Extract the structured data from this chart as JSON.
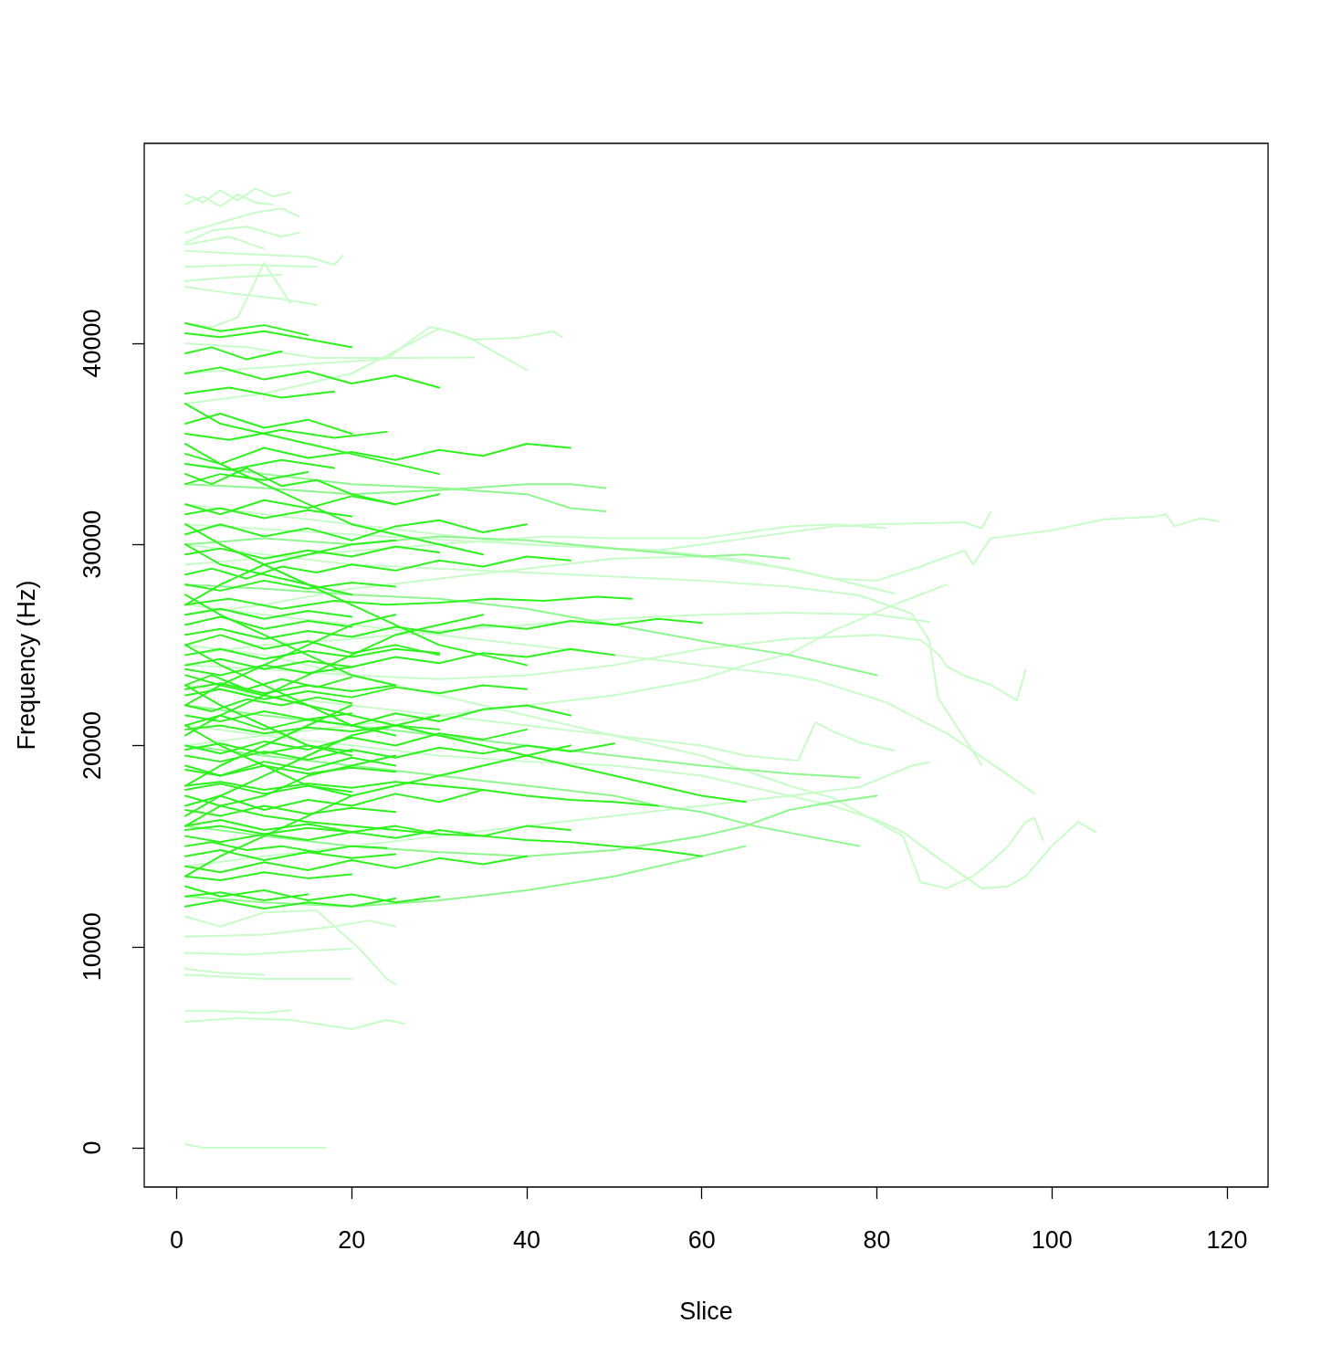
{
  "chart_data": {
    "type": "line",
    "xlabel": "Slice",
    "ylabel": "Frequency (Hz)",
    "xlim": [
      -3.7,
      124.7
    ],
    "xticks": [
      0,
      20,
      40,
      60,
      80,
      100,
      120
    ],
    "ylim": [
      -1950,
      49940
    ],
    "yticks": [
      0,
      10000,
      20000,
      30000,
      40000
    ],
    "series": [
      {
        "color": "#c8fcc8",
        "x": [
          1,
          3,
          5,
          7,
          9,
          11,
          13
        ],
        "values": [
          47400,
          47000,
          47600,
          47100,
          47700,
          47300,
          47500
        ]
      },
      {
        "color": "#c8fcc8",
        "x": [
          1,
          3,
          5,
          7,
          9,
          11
        ],
        "values": [
          46900,
          47300,
          46800,
          47400,
          47000,
          46900
        ]
      },
      {
        "color": "#c8fcc8",
        "x": [
          1,
          5,
          9,
          12,
          14
        ],
        "values": [
          45500,
          46000,
          46500,
          46700,
          46300
        ]
      },
      {
        "color": "#c8fcc8",
        "x": [
          1,
          4,
          8,
          12,
          14
        ],
        "values": [
          45000,
          45600,
          45800,
          45300,
          45500
        ]
      },
      {
        "color": "#c8fcc8",
        "x": [
          1,
          6,
          10
        ],
        "values": [
          44900,
          45300,
          44700
        ]
      },
      {
        "color": "#c8fcc8",
        "x": [
          1,
          5,
          10,
          15,
          18,
          19
        ],
        "values": [
          44600,
          44500,
          44400,
          44300,
          43900,
          44360
        ]
      },
      {
        "color": "#c8fcc8",
        "x": [
          1,
          8,
          16
        ],
        "values": [
          43800,
          43900,
          43800
        ]
      },
      {
        "color": "#c8fcc8",
        "x": [
          1,
          7,
          12
        ],
        "values": [
          43100,
          43300,
          43400
        ]
      },
      {
        "color": "#c8fcc8",
        "x": [
          1,
          6,
          12,
          16
        ],
        "values": [
          42800,
          42500,
          42200,
          41900
        ]
      },
      {
        "color": "#c8fcc8",
        "x": [
          1,
          4,
          7,
          10,
          13
        ],
        "values": [
          41000,
          40800,
          41300,
          44000,
          42000
        ]
      },
      {
        "color": "#c8fcc8",
        "x": [
          1,
          10,
          16,
          20,
          24,
          27,
          29,
          32,
          34,
          37,
          40
        ],
        "values": [
          38500,
          38800,
          39000,
          39100,
          39230,
          40200,
          40820,
          40500,
          40140,
          39400,
          38680
        ]
      },
      {
        "color": "#c8fcc8",
        "x": [
          1,
          8,
          16,
          25,
          34
        ],
        "values": [
          40000,
          39800,
          39270,
          39270,
          39300
        ]
      },
      {
        "color": "#c8fcc8",
        "x": [
          1,
          10,
          20,
          30,
          34,
          39,
          43,
          44
        ],
        "values": [
          37000,
          37500,
          38500,
          40730,
          40180,
          40270,
          40590,
          40320
        ]
      },
      {
        "color": "#c8fcc8",
        "x": [
          1,
          3,
          17
        ],
        "values": [
          180,
          0,
          0
        ]
      },
      {
        "color": "#c8fcc8",
        "x": [
          1,
          5,
          10,
          13
        ],
        "values": [
          6800,
          6800,
          6700,
          6850
        ]
      },
      {
        "color": "#c8fcc8",
        "x": [
          1,
          7,
          13,
          20,
          24,
          26
        ],
        "values": [
          6270,
          6450,
          6360,
          5900,
          6360,
          6180
        ]
      },
      {
        "color": "#c8fcc8",
        "x": [
          1,
          10,
          20
        ],
        "values": [
          8600,
          8400,
          8400
        ]
      },
      {
        "color": "#c8fcc8",
        "x": [
          1,
          5,
          10,
          16,
          21,
          24,
          25
        ],
        "values": [
          11500,
          11000,
          11700,
          11800,
          9850,
          8400,
          8130
        ]
      },
      {
        "color": "#c8fcc8",
        "x": [
          1,
          5,
          10
        ],
        "values": [
          8900,
          8700,
          8600
        ]
      },
      {
        "color": "#c8fcc8",
        "x": [
          1,
          10,
          18,
          22,
          25
        ],
        "values": [
          10500,
          10600,
          11000,
          11300,
          11000
        ]
      },
      {
        "color": "#c8fcc8",
        "x": [
          1,
          8,
          15,
          20
        ],
        "values": [
          9700,
          9600,
          9800,
          9900
        ]
      },
      {
        "color": "#c8fcc8",
        "x": [
          1,
          10,
          20,
          30,
          40,
          50,
          60,
          70,
          75,
          80,
          85,
          90,
          91,
          93,
          100,
          106,
          112,
          113,
          114,
          117,
          119
        ],
        "values": [
          26500,
          27000,
          27800,
          28300,
          28800,
          29300,
          29400,
          28800,
          28300,
          28200,
          28900,
          29700,
          29000,
          30300,
          30700,
          31250,
          31400,
          31500,
          30900,
          31300,
          31150
        ]
      },
      {
        "color": "#c8fcc8",
        "x": [
          1,
          10,
          20,
          30,
          40,
          50,
          55,
          60,
          65,
          70,
          75,
          80,
          85,
          90,
          92,
          93
        ],
        "values": [
          32000,
          31500,
          31000,
          30500,
          30000,
          29800,
          29700,
          30000,
          30300,
          30600,
          30900,
          31000,
          31050,
          31100,
          30800,
          31600
        ]
      },
      {
        "color": "#c8fcc8",
        "x": [
          1,
          15,
          30,
          42,
          50,
          60,
          65,
          70,
          75,
          81
        ],
        "values": [
          29000,
          29500,
          30000,
          30400,
          30300,
          30300,
          30600,
          30900,
          31000,
          30800
        ]
      },
      {
        "color": "#c8fcc8",
        "x": [
          1,
          10,
          20,
          30,
          40,
          50,
          60,
          70,
          75,
          80,
          83,
          87,
          90,
          92,
          95,
          97,
          100,
          103,
          105
        ],
        "values": [
          21000,
          20500,
          20000,
          19500,
          19200,
          19000,
          18500,
          17500,
          17000,
          16300,
          15700,
          14400,
          13500,
          12900,
          13000,
          13500,
          15000,
          16200,
          15700
        ]
      },
      {
        "color": "#c8fcc8",
        "x": [
          1,
          10,
          20,
          30,
          40,
          50,
          60,
          70,
          75,
          80,
          83,
          85,
          88,
          91,
          93,
          95,
          97,
          98,
          99
        ],
        "values": [
          25000,
          24500,
          23500,
          22500,
          21500,
          20500,
          19500,
          18000,
          17400,
          16200,
          15500,
          13200,
          12900,
          13500,
          14200,
          15000,
          16200,
          16400,
          15300
        ]
      },
      {
        "color": "#c8fcc8",
        "x": [
          1,
          10,
          20,
          30,
          40,
          50,
          60,
          70,
          73,
          81,
          88,
          94,
          98
        ],
        "values": [
          27000,
          26500,
          26000,
          25500,
          25000,
          24500,
          24000,
          23500,
          23250,
          22160,
          20610,
          18840,
          17620
        ]
      },
      {
        "color": "#c8fcc8",
        "x": [
          1,
          10,
          20,
          30,
          40,
          50,
          60,
          70,
          78,
          84,
          86,
          87,
          92
        ],
        "values": [
          30000,
          29500,
          29000,
          28800,
          28600,
          28400,
          28200,
          27900,
          27470,
          26560,
          25240,
          22380,
          19020
        ]
      },
      {
        "color": "#c8fcc8",
        "x": [
          1,
          10,
          20,
          30,
          40,
          50,
          60,
          70,
          80,
          85,
          87,
          88,
          90,
          93,
          96,
          97
        ],
        "values": [
          24000,
          23800,
          23500,
          23300,
          23500,
          24000,
          24800,
          25300,
          25500,
          25240,
          24560,
          23930,
          23470,
          23020,
          22250,
          23750
        ]
      },
      {
        "color": "#c8fcc8",
        "x": [
          1,
          10,
          20,
          30,
          40,
          50,
          60,
          65,
          70,
          75,
          82,
          88
        ],
        "values": [
          20000,
          20500,
          21000,
          21500,
          22000,
          22500,
          23300,
          24000,
          24560,
          25700,
          27010,
          28010
        ]
      },
      {
        "color": "#c8fcc8",
        "x": [
          1,
          10,
          20,
          30,
          40,
          50,
          60,
          65,
          71,
          73,
          75,
          78,
          82
        ],
        "values": [
          23000,
          22500,
          22000,
          21500,
          21000,
          20500,
          20000,
          19500,
          19250,
          21160,
          20700,
          20160,
          19750
        ]
      },
      {
        "color": "#c8fcc8",
        "x": [
          1,
          10,
          20,
          30,
          40,
          50,
          60,
          70,
          78,
          84,
          86
        ],
        "values": [
          14000,
          14500,
          15000,
          15500,
          16000,
          16500,
          17000,
          17500,
          17930,
          19000,
          19160
        ]
      },
      {
        "color": "#c8fcc8",
        "x": [
          1,
          10,
          20,
          30,
          40,
          50,
          60,
          70,
          80,
          86
        ],
        "values": [
          24500,
          25000,
          25300,
          25700,
          26000,
          26300,
          26500,
          26600,
          26500,
          26150
        ]
      },
      {
        "color": "#c8fcc8",
        "x": [
          1,
          20,
          40,
          55,
          65,
          75,
          82
        ],
        "values": [
          31000,
          30500,
          30000,
          29700,
          29200,
          28300,
          27560
        ]
      },
      {
        "color": "#8cf88c",
        "x": [
          1,
          10,
          20,
          30,
          40,
          50,
          55,
          60,
          65,
          70
        ],
        "values": [
          30000,
          30300,
          30000,
          30400,
          30200,
          29800,
          29600,
          29400,
          29500,
          29300
        ]
      },
      {
        "color": "#8cf88c",
        "x": [
          1,
          10,
          20,
          30,
          40,
          50,
          60,
          70,
          75,
          80
        ],
        "values": [
          28000,
          27800,
          27500,
          27300,
          26800,
          26000,
          25200,
          24500,
          24000,
          23500
        ]
      },
      {
        "color": "#8cf88c",
        "x": [
          1,
          10,
          20,
          30,
          40,
          50,
          60,
          70,
          78
        ],
        "values": [
          22000,
          21500,
          21000,
          20500,
          20000,
          19500,
          19000,
          18600,
          18400
        ]
      },
      {
        "color": "#8cf88c",
        "x": [
          1,
          10,
          20,
          30,
          40,
          50,
          60,
          65,
          70,
          75,
          80
        ],
        "values": [
          16000,
          15500,
          15000,
          14700,
          14500,
          14800,
          15500,
          16000,
          16800,
          17200,
          17500
        ]
      },
      {
        "color": "#8cf88c",
        "x": [
          1,
          10,
          20,
          30,
          40,
          50,
          60,
          65
        ],
        "values": [
          12500,
          12200,
          12000,
          12300,
          12800,
          13500,
          14500,
          15000
        ]
      },
      {
        "color": "#8cf88c",
        "x": [
          1,
          10,
          20,
          30,
          40,
          45,
          49
        ],
        "values": [
          33000,
          32800,
          32500,
          32700,
          33000,
          33000,
          32800
        ]
      },
      {
        "color": "#8cf88c",
        "x": [
          1,
          10,
          20,
          30,
          40,
          45,
          49
        ],
        "values": [
          34000,
          33500,
          33000,
          32800,
          32500,
          31800,
          31650
        ]
      },
      {
        "color": "#8cf88c",
        "x": [
          1,
          10,
          20,
          30,
          40,
          50,
          55,
          60,
          66,
          72,
          78
        ],
        "values": [
          20000,
          19500,
          19000,
          18500,
          18000,
          17500,
          17000,
          16700,
          16000,
          15500,
          15000
        ]
      },
      {
        "color": "#2ef21e",
        "x": [
          1,
          4,
          8,
          12,
          16,
          20,
          25
        ],
        "values": [
          33500,
          33000,
          33800,
          32900,
          33200,
          32500,
          32000
        ]
      },
      {
        "color": "#2ef21e",
        "x": [
          1,
          5,
          10,
          15,
          20,
          25,
          30,
          35,
          40
        ],
        "values": [
          30500,
          31000,
          30400,
          30800,
          30200,
          30900,
          31200,
          30600,
          31000
        ]
      },
      {
        "color": "#2ef21e",
        "x": [
          1,
          6,
          12,
          18,
          24,
          30,
          36,
          42,
          48,
          52
        ],
        "values": [
          27000,
          27300,
          26800,
          27200,
          27000,
          27100,
          27300,
          27200,
          27400,
          27300
        ]
      },
      {
        "color": "#2ef21e",
        "x": [
          1,
          5,
          10,
          15,
          20,
          25,
          30
        ],
        "values": [
          25000,
          25500,
          24800,
          25200,
          24600,
          25000,
          24500
        ]
      },
      {
        "color": "#2ef21e",
        "x": [
          1,
          4,
          8,
          12,
          16,
          20
        ],
        "values": [
          23000,
          23500,
          22800,
          23300,
          22900,
          23400
        ]
      },
      {
        "color": "#2ef21e",
        "x": [
          1,
          5,
          10,
          15,
          20,
          25,
          30,
          35,
          40,
          45
        ],
        "values": [
          21000,
          21500,
          20800,
          21300,
          21000,
          21600,
          21200,
          21800,
          22000,
          21500
        ]
      },
      {
        "color": "#2ef21e",
        "x": [
          1,
          5,
          10,
          15,
          20,
          25
        ],
        "values": [
          19000,
          18500,
          19200,
          18800,
          19400,
          19000
        ]
      },
      {
        "color": "#2ef21e",
        "x": [
          1,
          5,
          10,
          15,
          20,
          25,
          30,
          35
        ],
        "values": [
          17000,
          17500,
          16800,
          17300,
          17000,
          17600,
          17200,
          17800
        ]
      },
      {
        "color": "#2ef21e",
        "x": [
          1,
          4,
          8,
          12,
          16,
          20,
          24
        ],
        "values": [
          15000,
          15200,
          14800,
          15000,
          14700,
          15000,
          14900
        ]
      },
      {
        "color": "#2ef21e",
        "x": [
          1,
          5,
          10,
          15,
          20,
          25,
          30
        ],
        "values": [
          13000,
          12500,
          12800,
          12300,
          12600,
          12200,
          12500
        ]
      },
      {
        "color": "#2ef21e",
        "x": [
          1,
          5,
          10,
          15,
          20
        ],
        "values": [
          36000,
          36500,
          35800,
          36200,
          35500
        ]
      },
      {
        "color": "#2ef21e",
        "x": [
          1,
          5,
          10,
          15,
          20,
          25,
          30
        ],
        "values": [
          38500,
          38800,
          38200,
          38600,
          38000,
          38400,
          37800
        ]
      },
      {
        "color": "#2ef21e",
        "x": [
          1,
          5,
          10,
          15,
          20
        ],
        "values": [
          40500,
          40300,
          40600,
          40200,
          39800
        ]
      },
      {
        "color": "#2ef21e",
        "x": [
          1,
          4,
          8,
          12,
          16,
          20,
          25,
          30,
          35,
          40,
          45
        ],
        "values": [
          28500,
          28800,
          28300,
          28900,
          28600,
          29000,
          28700,
          29200,
          28900,
          29400,
          29200
        ]
      },
      {
        "color": "#2ef21e",
        "x": [
          1,
          5,
          10,
          15,
          20,
          25,
          30,
          35,
          40,
          45,
          50
        ],
        "values": [
          24000,
          24300,
          23800,
          24200,
          23900,
          24400,
          24100,
          24600,
          24400,
          24800,
          24500
        ]
      },
      {
        "color": "#2ef21e",
        "x": [
          1,
          5,
          10,
          15,
          20,
          25,
          30,
          35,
          40
        ],
        "values": [
          20000,
          19600,
          20200,
          19800,
          20400,
          20000,
          20600,
          20300,
          20800
        ]
      },
      {
        "color": "#2ef21e",
        "x": [
          1,
          5,
          10,
          15,
          20,
          25,
          30,
          35,
          40,
          45,
          50,
          55
        ],
        "values": [
          18000,
          18200,
          17800,
          18100,
          17900,
          18200,
          18000,
          17800,
          17500,
          17300,
          17200,
          17000
        ]
      },
      {
        "color": "#2ef21e",
        "x": [
          1,
          5,
          10,
          15,
          20
        ],
        "values": [
          26000,
          26400,
          25800,
          26200,
          25900
        ]
      },
      {
        "color": "#2ef21e",
        "x": [
          1,
          5,
          10,
          15,
          20,
          25,
          30
        ],
        "values": [
          32000,
          31500,
          32200,
          31800,
          32400,
          32000,
          32500
        ]
      },
      {
        "color": "#2ef21e",
        "x": [
          1,
          5,
          10,
          15,
          20,
          25,
          30,
          35,
          40,
          45
        ],
        "values": [
          34500,
          34000,
          34800,
          34300,
          34600,
          34200,
          34700,
          34400,
          35000,
          34800
        ]
      },
      {
        "color": "#2ef21e",
        "x": [
          1,
          4,
          8,
          12,
          16,
          20
        ],
        "values": [
          22000,
          21700,
          22300,
          22000,
          22400,
          22100
        ]
      },
      {
        "color": "#2ef21e",
        "x": [
          1,
          5,
          10,
          15,
          20,
          25,
          30
        ],
        "values": [
          16000,
          16300,
          15800,
          16100,
          15700,
          16000,
          15600
        ]
      },
      {
        "color": "#2ef21e",
        "x": [
          1,
          5,
          10,
          15,
          20,
          25,
          30,
          35,
          40
        ],
        "values": [
          14000,
          13700,
          14200,
          13800,
          14300,
          13900,
          14400,
          14100,
          14500
        ]
      },
      {
        "color": "#2ef21e",
        "x": [
          1,
          5,
          10,
          15,
          20,
          25
        ],
        "values": [
          12000,
          12300,
          11900,
          12200,
          12000,
          12400
        ]
      },
      {
        "color": "#2ef21e",
        "x": [
          1,
          5,
          10,
          15,
          20,
          25,
          30
        ],
        "values": [
          29500,
          29800,
          29300,
          29700,
          29400,
          29900,
          29600
        ]
      },
      {
        "color": "#2ef21e",
        "x": [
          1,
          5,
          10,
          15,
          20,
          25,
          30,
          35
        ],
        "values": [
          20500,
          21500,
          22500,
          23500,
          24500,
          25500,
          26000,
          26500
        ]
      },
      {
        "color": "#2ef21e",
        "x": [
          1,
          5,
          10,
          15,
          20,
          25,
          30,
          35,
          40
        ],
        "values": [
          31000,
          30000,
          29000,
          28000,
          27000,
          26000,
          25000,
          24500,
          24000
        ]
      },
      {
        "color": "#2ef21e",
        "x": [
          1,
          5,
          10,
          15,
          20,
          25,
          30
        ],
        "values": [
          16500,
          17500,
          18500,
          19500,
          20500,
          21000,
          21500
        ]
      },
      {
        "color": "#2ef21e",
        "x": [
          1,
          5,
          10,
          15,
          20,
          25
        ],
        "values": [
          27500,
          26500,
          25500,
          24500,
          23500,
          23000
        ]
      },
      {
        "color": "#2ef21e",
        "x": [
          1,
          5,
          10,
          15,
          20,
          25,
          30,
          35
        ],
        "values": [
          35000,
          34000,
          33000,
          32000,
          31000,
          30500,
          30000,
          29500
        ]
      },
      {
        "color": "#2ef21e",
        "x": [
          1,
          5,
          10,
          15,
          20,
          25,
          30,
          35,
          40,
          45
        ],
        "values": [
          13500,
          14500,
          15500,
          16500,
          17500,
          18000,
          18500,
          19000,
          19500,
          20000
        ]
      },
      {
        "color": "#2ef21e",
        "x": [
          1,
          5,
          10,
          15,
          20,
          25,
          30
        ],
        "values": [
          37000,
          36000,
          35500,
          35000,
          34500,
          34000,
          33500
        ]
      },
      {
        "color": "#2ef21e",
        "x": [
          1,
          4,
          8,
          12
        ],
        "values": [
          39500,
          39800,
          39200,
          39600
        ]
      },
      {
        "color": "#2ef21e",
        "x": [
          1,
          5,
          10,
          15,
          20,
          25,
          30,
          35,
          40
        ],
        "values": [
          22500,
          22800,
          22300,
          22700,
          22400,
          22900,
          22600,
          23000,
          22800
        ]
      },
      {
        "color": "#2ef21e",
        "x": [
          1,
          5,
          10,
          15,
          20,
          25,
          30,
          35,
          40,
          45,
          50
        ],
        "values": [
          19500,
          19200,
          19700,
          19300,
          19800,
          19400,
          19900,
          19600,
          20000,
          19700,
          20100
        ]
      },
      {
        "color": "#2ef21e",
        "x": [
          1,
          5,
          10,
          15
        ],
        "values": [
          33000,
          33500,
          33200,
          33600
        ]
      },
      {
        "color": "#2ef21e",
        "x": [
          1,
          5,
          10,
          15,
          20,
          25,
          30,
          35,
          40,
          45,
          50,
          55,
          60
        ],
        "values": [
          25500,
          25800,
          25300,
          25700,
          25400,
          25900,
          25600,
          26000,
          25800,
          26200,
          26000,
          26300,
          26100
        ]
      },
      {
        "color": "#2ef21e",
        "x": [
          1,
          5,
          10,
          15,
          20,
          25,
          30,
          35,
          40,
          45,
          50,
          55,
          60,
          65
        ],
        "values": [
          23500,
          23000,
          22500,
          22000,
          21500,
          21000,
          20500,
          20000,
          19500,
          19000,
          18500,
          18000,
          17500,
          17200
        ]
      },
      {
        "color": "#2ef21e",
        "x": [
          1,
          5,
          10,
          15,
          20,
          25,
          30,
          35,
          40,
          45
        ],
        "values": [
          15500,
          15200,
          15600,
          15300,
          15700,
          15400,
          15800,
          15500,
          16000,
          15800
        ]
      },
      {
        "color": "#2ef21e",
        "x": [
          1,
          5,
          10,
          15,
          20,
          25,
          30,
          35,
          40,
          45,
          50,
          55,
          60
        ],
        "values": [
          17500,
          17000,
          16500,
          16200,
          16000,
          15800,
          15600,
          15500,
          15300,
          15200,
          15000,
          14800,
          14500
        ]
      },
      {
        "color": "#2ef21e",
        "x": [
          1,
          5,
          10,
          15
        ],
        "values": [
          41000,
          40600,
          40900,
          40400
        ]
      },
      {
        "color": "#2ef21e",
        "x": [
          1,
          6,
          12,
          18
        ],
        "values": [
          37500,
          37800,
          37300,
          37600
        ]
      },
      {
        "color": "#2ef21e",
        "x": [
          1,
          6,
          12,
          18,
          24
        ],
        "values": [
          35500,
          35200,
          35700,
          35300,
          35600
        ]
      },
      {
        "color": "#2ef21e",
        "x": [
          1,
          6,
          12,
          18
        ],
        "values": [
          34000,
          33700,
          34200,
          33800
        ]
      },
      {
        "color": "#2ef21e",
        "x": [
          1,
          5,
          10,
          15,
          20
        ],
        "values": [
          31500,
          31800,
          31300,
          31700,
          31400
        ]
      },
      {
        "color": "#2ef21e",
        "x": [
          1,
          5,
          10,
          15,
          20,
          25
        ],
        "values": [
          28000,
          27700,
          28200,
          27800,
          28100,
          27900
        ]
      },
      {
        "color": "#2ef21e",
        "x": [
          1,
          5,
          10,
          15,
          20
        ],
        "values": [
          26500,
          26800,
          26300,
          26700,
          26400
        ]
      },
      {
        "color": "#2ef21e",
        "x": [
          1,
          5,
          10,
          15,
          20,
          25,
          30
        ],
        "values": [
          24500,
          24800,
          24300,
          24700,
          24400,
          24800,
          24600
        ]
      },
      {
        "color": "#2ef21e",
        "x": [
          1,
          5,
          10,
          15,
          20
        ],
        "values": [
          23800,
          23500,
          24000,
          23600,
          23900
        ]
      },
      {
        "color": "#2ef21e",
        "x": [
          1,
          5,
          10,
          15,
          20,
          25
        ],
        "values": [
          22800,
          23100,
          22600,
          23000,
          22700,
          23000
        ]
      },
      {
        "color": "#2ef21e",
        "x": [
          1,
          5,
          10,
          15,
          20
        ],
        "values": [
          21500,
          21200,
          21700,
          21300,
          21600
        ]
      },
      {
        "color": "#2ef21e",
        "x": [
          1,
          5,
          10,
          15,
          20,
          25,
          30
        ],
        "values": [
          20800,
          21000,
          20600,
          20900,
          20700,
          21000,
          20800
        ]
      },
      {
        "color": "#2ef21e",
        "x": [
          1,
          5,
          10,
          15,
          20
        ],
        "values": [
          19800,
          20100,
          19600,
          20000,
          19700
        ]
      },
      {
        "color": "#2ef21e",
        "x": [
          1,
          5,
          10,
          15,
          20,
          25
        ],
        "values": [
          18800,
          18500,
          19000,
          18600,
          18900,
          18700
        ]
      },
      {
        "color": "#2ef21e",
        "x": [
          1,
          5,
          10,
          15,
          20
        ],
        "values": [
          17800,
          18100,
          17600,
          18000,
          17700
        ]
      },
      {
        "color": "#2ef21e",
        "x": [
          1,
          5,
          10,
          15,
          20,
          25
        ],
        "values": [
          16800,
          16500,
          17000,
          16600,
          16900,
          16700
        ]
      },
      {
        "color": "#2ef21e",
        "x": [
          1,
          5,
          10,
          15,
          20
        ],
        "values": [
          15800,
          16000,
          15600,
          15900,
          15700
        ]
      },
      {
        "color": "#2ef21e",
        "x": [
          1,
          5,
          10,
          15,
          20,
          25
        ],
        "values": [
          14500,
          14800,
          14300,
          14700,
          14400,
          14600
        ]
      },
      {
        "color": "#2ef21e",
        "x": [
          1,
          5,
          10,
          15,
          20
        ],
        "values": [
          13500,
          13300,
          13700,
          13400,
          13600
        ]
      },
      {
        "color": "#2ef21e",
        "x": [
          1,
          5,
          10,
          15
        ],
        "values": [
          12500,
          12700,
          12300,
          12600
        ]
      },
      {
        "color": "#2ef21e",
        "x": [
          1,
          5,
          10,
          15,
          20,
          25
        ],
        "values": [
          27000,
          28000,
          29000,
          29500,
          30000,
          30200
        ]
      },
      {
        "color": "#2ef21e",
        "x": [
          1,
          5,
          10,
          15,
          20
        ],
        "values": [
          30000,
          29000,
          28500,
          28000,
          27500
        ]
      },
      {
        "color": "#2ef21e",
        "x": [
          1,
          5,
          10,
          15,
          20,
          25
        ],
        "values": [
          22000,
          23000,
          24000,
          25000,
          26000,
          26500
        ]
      },
      {
        "color": "#2ef21e",
        "x": [
          1,
          5,
          10,
          15,
          20,
          25
        ],
        "values": [
          25000,
          24000,
          23000,
          22000,
          21000,
          20500
        ]
      },
      {
        "color": "#2ef21e",
        "x": [
          1,
          5,
          10,
          15,
          20
        ],
        "values": [
          18000,
          19000,
          20000,
          21000,
          22000
        ]
      },
      {
        "color": "#2ef21e",
        "x": [
          1,
          5,
          10,
          15,
          20
        ],
        "values": [
          23000,
          22000,
          21000,
          20000,
          19500
        ]
      },
      {
        "color": "#2ef21e",
        "x": [
          1,
          5,
          10,
          15,
          20,
          25
        ],
        "values": [
          16000,
          17000,
          17500,
          18500,
          19000,
          19500
        ]
      },
      {
        "color": "#2ef21e",
        "x": [
          1,
          5,
          10,
          15,
          20
        ],
        "values": [
          21000,
          20000,
          19000,
          18000,
          17500
        ]
      }
    ]
  }
}
